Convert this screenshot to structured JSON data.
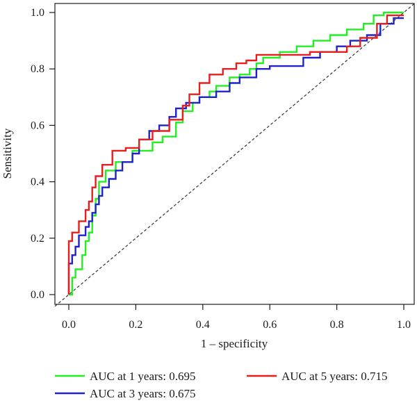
{
  "chart_data": {
    "type": "line",
    "xlabel": "1 – specificity",
    "ylabel": "Sensitivity",
    "xlim": [
      0.0,
      1.0
    ],
    "ylim": [
      0.0,
      1.0
    ],
    "xticks": [
      "0.0",
      "0.2",
      "0.4",
      "0.6",
      "0.8",
      "1.0"
    ],
    "yticks": [
      "0.0",
      "0.2",
      "0.4",
      "0.6",
      "0.8",
      "1.0"
    ],
    "grid": false,
    "legend_position": "bottom",
    "reference_line": {
      "style": "dashed",
      "x": [
        0.0,
        1.0
      ],
      "y": [
        0.0,
        1.0
      ]
    },
    "series": [
      {
        "name": "AUC at 1 years: 0.695",
        "color": "#22ee22",
        "x": [
          0.0,
          0.01,
          0.01,
          0.02,
          0.02,
          0.04,
          0.04,
          0.05,
          0.05,
          0.06,
          0.06,
          0.07,
          0.07,
          0.08,
          0.08,
          0.09,
          0.09,
          0.11,
          0.11,
          0.14,
          0.14,
          0.19,
          0.19,
          0.25,
          0.25,
          0.28,
          0.28,
          0.32,
          0.32,
          0.34,
          0.34,
          0.37,
          0.37,
          0.39,
          0.39,
          0.42,
          0.42,
          0.44,
          0.44,
          0.48,
          0.48,
          0.51,
          0.51,
          0.54,
          0.54,
          0.56,
          0.56,
          0.58,
          0.58,
          0.63,
          0.63,
          0.68,
          0.68,
          0.73,
          0.73,
          0.78,
          0.78,
          0.83,
          0.83,
          0.88,
          0.88,
          0.91,
          0.91,
          0.94,
          0.94,
          1.0
        ],
        "y": [
          0.0,
          0.0,
          0.06,
          0.06,
          0.09,
          0.09,
          0.14,
          0.14,
          0.19,
          0.19,
          0.22,
          0.22,
          0.28,
          0.28,
          0.34,
          0.34,
          0.4,
          0.4,
          0.44,
          0.44,
          0.47,
          0.47,
          0.51,
          0.51,
          0.54,
          0.54,
          0.56,
          0.56,
          0.61,
          0.61,
          0.65,
          0.65,
          0.68,
          0.68,
          0.7,
          0.7,
          0.72,
          0.72,
          0.74,
          0.74,
          0.77,
          0.77,
          0.78,
          0.78,
          0.8,
          0.8,
          0.82,
          0.82,
          0.84,
          0.84,
          0.86,
          0.86,
          0.88,
          0.88,
          0.9,
          0.9,
          0.92,
          0.92,
          0.94,
          0.94,
          0.96,
          0.96,
          0.99,
          0.99,
          1.0,
          1.0
        ]
      },
      {
        "name": "AUC at 3 years: 0.675",
        "color": "#1f22cc",
        "x": [
          0.0,
          0.0,
          0.01,
          0.01,
          0.02,
          0.02,
          0.03,
          0.03,
          0.05,
          0.05,
          0.06,
          0.06,
          0.07,
          0.07,
          0.08,
          0.08,
          0.09,
          0.09,
          0.1,
          0.1,
          0.12,
          0.12,
          0.14,
          0.14,
          0.16,
          0.16,
          0.19,
          0.19,
          0.21,
          0.21,
          0.24,
          0.24,
          0.27,
          0.27,
          0.3,
          0.3,
          0.32,
          0.32,
          0.35,
          0.35,
          0.39,
          0.39,
          0.44,
          0.44,
          0.48,
          0.48,
          0.51,
          0.51,
          0.56,
          0.56,
          0.6,
          0.6,
          0.7,
          0.7,
          0.75,
          0.75,
          0.8,
          0.8,
          0.84,
          0.84,
          0.89,
          0.89,
          0.93,
          0.93,
          0.97,
          0.97,
          1.0
        ],
        "y": [
          0.0,
          0.11,
          0.11,
          0.14,
          0.14,
          0.17,
          0.17,
          0.21,
          0.21,
          0.24,
          0.24,
          0.26,
          0.26,
          0.29,
          0.29,
          0.32,
          0.32,
          0.35,
          0.35,
          0.38,
          0.38,
          0.41,
          0.41,
          0.44,
          0.44,
          0.47,
          0.47,
          0.5,
          0.5,
          0.55,
          0.55,
          0.58,
          0.58,
          0.6,
          0.6,
          0.63,
          0.63,
          0.66,
          0.66,
          0.68,
          0.68,
          0.7,
          0.7,
          0.72,
          0.72,
          0.75,
          0.75,
          0.77,
          0.77,
          0.8,
          0.8,
          0.81,
          0.81,
          0.84,
          0.84,
          0.86,
          0.86,
          0.88,
          0.88,
          0.9,
          0.9,
          0.92,
          0.92,
          0.96,
          0.96,
          0.98,
          0.98
        ]
      },
      {
        "name": "AUC at 5 years: 0.715",
        "color": "#e61e1e",
        "x": [
          0.0,
          0.0,
          0.01,
          0.01,
          0.03,
          0.03,
          0.05,
          0.05,
          0.06,
          0.06,
          0.07,
          0.07,
          0.08,
          0.08,
          0.1,
          0.1,
          0.13,
          0.13,
          0.17,
          0.17,
          0.21,
          0.21,
          0.25,
          0.25,
          0.3,
          0.3,
          0.34,
          0.34,
          0.36,
          0.36,
          0.39,
          0.39,
          0.42,
          0.42,
          0.46,
          0.46,
          0.5,
          0.5,
          0.53,
          0.53,
          0.56,
          0.56,
          0.72,
          0.72,
          0.83,
          0.83,
          0.87,
          0.87,
          0.92,
          0.92,
          0.95,
          0.95,
          1.0
        ],
        "y": [
          0.0,
          0.19,
          0.19,
          0.22,
          0.22,
          0.26,
          0.26,
          0.3,
          0.3,
          0.33,
          0.33,
          0.38,
          0.38,
          0.42,
          0.42,
          0.46,
          0.46,
          0.51,
          0.51,
          0.52,
          0.52,
          0.55,
          0.55,
          0.58,
          0.58,
          0.62,
          0.62,
          0.67,
          0.67,
          0.71,
          0.71,
          0.75,
          0.75,
          0.78,
          0.78,
          0.8,
          0.8,
          0.82,
          0.82,
          0.83,
          0.83,
          0.85,
          0.85,
          0.86,
          0.86,
          0.88,
          0.88,
          0.91,
          0.91,
          0.96,
          0.96,
          0.99,
          0.99
        ]
      }
    ]
  }
}
